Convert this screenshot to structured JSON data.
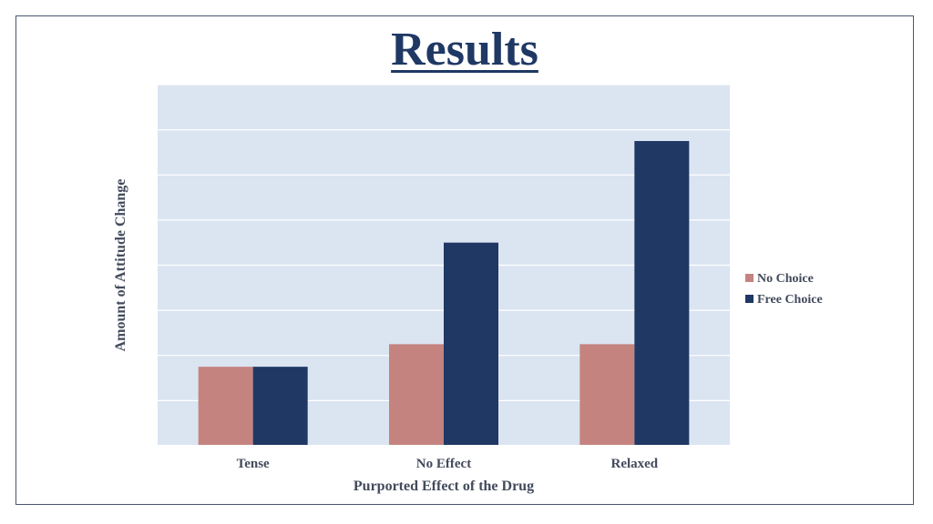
{
  "chart_data": {
    "type": "bar",
    "title": "Results",
    "xlabel": "Purported Effect of the Drug",
    "ylabel": "Amount of Attitude Change",
    "categories": [
      "Tense",
      "No Effect",
      "Relaxed"
    ],
    "series": [
      {
        "name": "No Choice",
        "color": "#c5837f",
        "values": [
          1.75,
          2.25,
          2.25
        ]
      },
      {
        "name": "Free Choice",
        "color": "#1f3864",
        "values": [
          1.75,
          4.5,
          6.75
        ]
      }
    ],
    "ylim": [
      0,
      8
    ],
    "grid": true,
    "legend": "right",
    "colors": {
      "plot_background": "#dbe4f1",
      "gridline": "#ffffff",
      "title": "#1f3864",
      "text": "#434a5c"
    }
  }
}
